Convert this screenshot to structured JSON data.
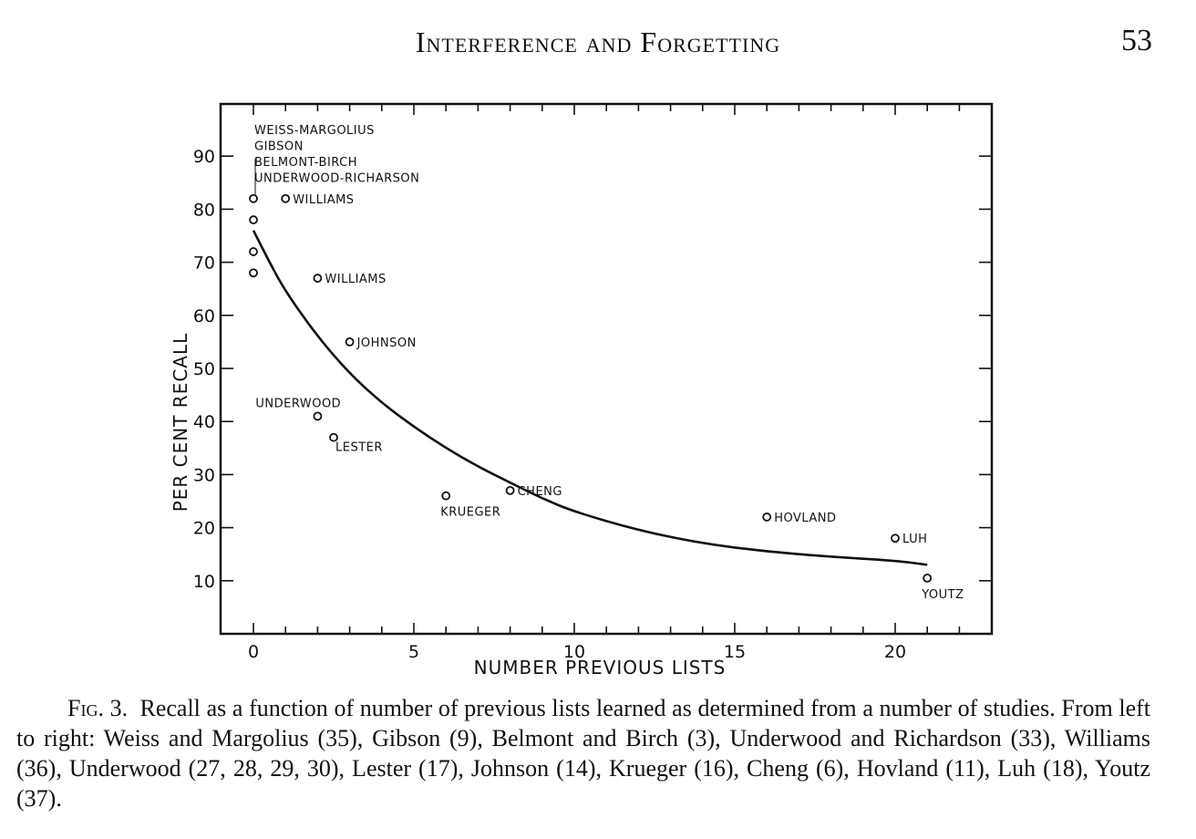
{
  "header": {
    "title": "Interference and Forgetting",
    "page_number": "53"
  },
  "chart_data": {
    "type": "scatter",
    "xlabel": "NUMBER PREVIOUS LISTS",
    "ylabel": "PER CENT RECALL",
    "xlim": [
      -1,
      23
    ],
    "ylim": [
      0,
      100
    ],
    "x_ticks": [
      0,
      5,
      10,
      15,
      20
    ],
    "x_tick_labels": [
      "0",
      "5",
      "10",
      "15",
      "20"
    ],
    "y_ticks": [
      10,
      20,
      30,
      40,
      50,
      60,
      70,
      80,
      90
    ],
    "y_tick_labels": [
      "10",
      "20",
      "30",
      "40",
      "50",
      "60",
      "70",
      "80",
      "90"
    ],
    "grid": false,
    "group_labels": [
      {
        "text": "WEISS-MARGOLIUS",
        "x": 0,
        "y": 95
      },
      {
        "text": "GIBSON",
        "x": 0,
        "y": 92
      },
      {
        "text": "BELMONT-BIRCH",
        "x": 0,
        "y": 89
      },
      {
        "text": "UNDERWOOD-RICHARSON",
        "x": 0,
        "y": 86
      }
    ],
    "points": [
      {
        "x": 0,
        "y": 82,
        "label": ""
      },
      {
        "x": 0,
        "y": 78,
        "label": ""
      },
      {
        "x": 0,
        "y": 72,
        "label": ""
      },
      {
        "x": 0,
        "y": 68,
        "label": ""
      },
      {
        "x": 1,
        "y": 82,
        "label": "WILLIAMS",
        "pos": "right"
      },
      {
        "x": 2,
        "y": 67,
        "label": "WILLIAMS",
        "pos": "right"
      },
      {
        "x": 3,
        "y": 55,
        "label": "JOHNSON",
        "pos": "right"
      },
      {
        "x": 2,
        "y": 41,
        "label": "UNDERWOOD",
        "pos": "above-left"
      },
      {
        "x": 2.5,
        "y": 37,
        "label": "LESTER",
        "pos": "below-right"
      },
      {
        "x": 6,
        "y": 26,
        "label": "KRUEGER",
        "pos": "below"
      },
      {
        "x": 8,
        "y": 27,
        "label": "CHENG",
        "pos": "right"
      },
      {
        "x": 16,
        "y": 22,
        "label": "HOVLAND",
        "pos": "right"
      },
      {
        "x": 20,
        "y": 18,
        "label": "LUH",
        "pos": "right"
      },
      {
        "x": 21,
        "y": 10.5,
        "label": "YOUTZ",
        "pos": "below"
      }
    ],
    "curve": {
      "x": [
        0,
        0.5,
        1,
        2,
        3,
        4,
        5,
        6,
        7,
        8,
        9,
        10,
        12,
        14,
        16,
        18,
        20,
        21
      ],
      "y": [
        76,
        70,
        64.5,
        56,
        49,
        43.5,
        39,
        35,
        31.5,
        28.5,
        25.5,
        23,
        19.5,
        17,
        15.5,
        14.5,
        13.8,
        13
      ]
    }
  },
  "caption": {
    "label": "Fig. 3.",
    "text": "Recall as a function of number of previous lists learned as determined from a number of studies. From left to right: Weiss and Margolius (35), Gibson (9), Belmont and Birch (3), Underwood and Richardson (33), Williams (36), Underwood (27, 28, 29, 30), Lester (17), Johnson (14), Krueger (16), Cheng (6), Hovland (11), Luh (18), Youtz (37)."
  }
}
